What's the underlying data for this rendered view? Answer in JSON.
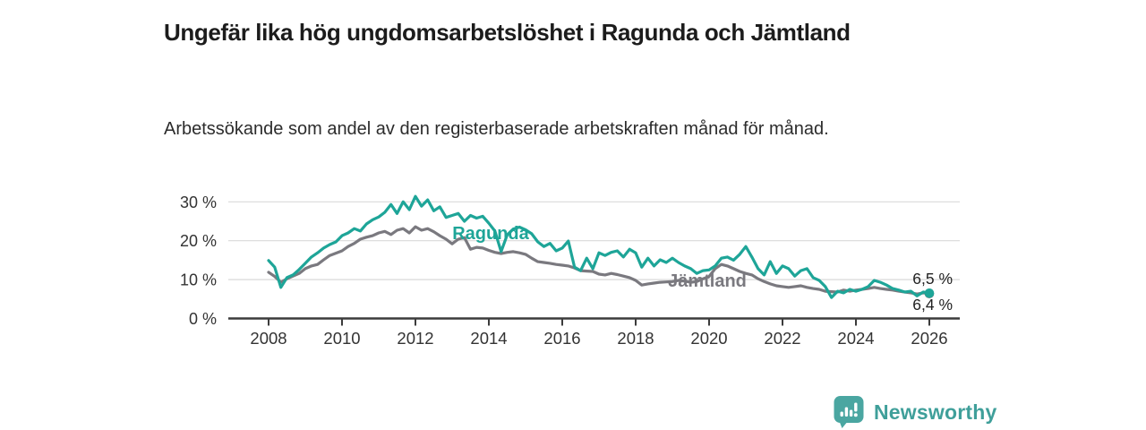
{
  "branding": {
    "logo_text": "Newsworthy",
    "logo_text_color": "#3f9f9a",
    "logo_icon_color": "#4aa6a1"
  },
  "colors": {
    "ragunda": "#1ea598",
    "jamtland": "#7a797f",
    "grid": "#dadada",
    "axis": "#3b3b3b",
    "tick_label": "#333333",
    "end_label": "#222222"
  },
  "chart_data": {
    "type": "line",
    "title": "Ungefär lika hög ungdomsarbetslöshet i Ragunda och Jämtland",
    "subtitle": "Arbetssökande som andel av den registerbaserade arbetskraften månad för månad.",
    "xlabel": "",
    "ylabel": "",
    "x_start": 2008,
    "x_end": 2026,
    "x_step_years": 0.166667,
    "ylim": [
      0,
      34
    ],
    "grid": "horizontal",
    "legend_position": "inline-labels",
    "yticks": [
      {
        "value": 0,
        "label": "0 %"
      },
      {
        "value": 10,
        "label": "10 %"
      },
      {
        "value": 20,
        "label": "20 %"
      },
      {
        "value": 30,
        "label": "30 %"
      }
    ],
    "xticks": [
      {
        "value": 2008,
        "label": "2008"
      },
      {
        "value": 2010,
        "label": "2010"
      },
      {
        "value": 2012,
        "label": "2012"
      },
      {
        "value": 2014,
        "label": "2014"
      },
      {
        "value": 2016,
        "label": "2016"
      },
      {
        "value": 2018,
        "label": "2018"
      },
      {
        "value": 2020,
        "label": "2020"
      },
      {
        "value": 2022,
        "label": "2022"
      },
      {
        "value": 2024,
        "label": "2024"
      },
      {
        "value": 2026,
        "label": "2026"
      }
    ],
    "series": [
      {
        "name": "Jämtland",
        "color": "#7a797f",
        "end_label": "6,4 %",
        "end_value": 6.4,
        "values": [
          11.9,
          10.8,
          9.3,
          10.2,
          10.9,
          11.6,
          12.8,
          13.5,
          13.9,
          15.1,
          16.2,
          16.8,
          17.4,
          18.5,
          19.3,
          20.4,
          20.9,
          21.3,
          22.0,
          22.4,
          21.6,
          22.7,
          23.1,
          22.0,
          23.6,
          22.7,
          23.1,
          22.3,
          21.3,
          20.4,
          19.2,
          20.4,
          20.8,
          17.8,
          18.3,
          18.1,
          17.5,
          17.0,
          16.7,
          17.0,
          17.2,
          16.9,
          16.5,
          15.5,
          14.6,
          14.4,
          14.2,
          13.9,
          13.7,
          13.5,
          13.0,
          12.3,
          12.2,
          12.1,
          11.4,
          11.2,
          11.6,
          11.3,
          10.9,
          10.5,
          9.8,
          8.6,
          8.9,
          9.1,
          9.3,
          9.4,
          9.5,
          9.8,
          9.6,
          9.3,
          9.5,
          10.2,
          10.8,
          12.8,
          13.9,
          13.5,
          12.8,
          12.1,
          11.6,
          11.2,
          10.2,
          9.5,
          8.9,
          8.4,
          8.2,
          8.0,
          8.2,
          8.4,
          8.0,
          7.7,
          7.5,
          7.0,
          6.9,
          6.8,
          7.3,
          7.0,
          7.3,
          7.5,
          7.7,
          8.0,
          7.7,
          7.5,
          7.3,
          7.0,
          6.8,
          6.6,
          6.3,
          6.6,
          6.4
        ]
      },
      {
        "name": "Ragunda",
        "color": "#1ea598",
        "end_label": "6,5 %",
        "end_value": 6.5,
        "values": [
          14.9,
          13.2,
          8.0,
          10.5,
          11.2,
          12.6,
          14.2,
          15.8,
          16.9,
          18.1,
          19.0,
          19.7,
          21.3,
          22.0,
          23.1,
          22.5,
          24.3,
          25.4,
          26.1,
          27.3,
          29.3,
          27.0,
          30.0,
          28.0,
          31.4,
          28.9,
          30.5,
          27.7,
          28.7,
          26.0,
          26.5,
          27.0,
          25.0,
          26.5,
          25.8,
          26.3,
          24.5,
          22.5,
          17.2,
          21.5,
          23.0,
          23.5,
          22.8,
          21.8,
          19.7,
          18.5,
          19.3,
          17.4,
          18.1,
          19.9,
          13.2,
          12.3,
          15.5,
          12.8,
          16.9,
          16.2,
          17.0,
          17.4,
          15.8,
          17.8,
          16.9,
          13.2,
          15.5,
          13.5,
          15.1,
          14.4,
          15.5,
          14.4,
          13.5,
          12.8,
          11.6,
          12.3,
          12.5,
          13.5,
          15.5,
          15.8,
          15.0,
          16.5,
          18.5,
          15.8,
          12.8,
          11.2,
          14.6,
          11.6,
          13.5,
          12.8,
          10.9,
          12.3,
          12.8,
          10.5,
          9.8,
          8.2,
          5.4,
          7.0,
          6.6,
          7.5,
          7.0,
          7.5,
          8.2,
          9.8,
          9.3,
          8.6,
          7.7,
          7.3,
          6.8,
          7.0,
          5.8,
          6.8,
          6.5
        ]
      }
    ]
  }
}
